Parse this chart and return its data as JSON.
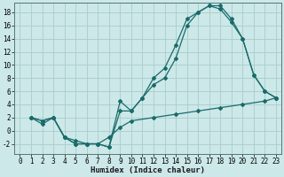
{
  "title": "",
  "xlabel": "Humidex (Indice chaleur)",
  "background_color": "#cce8e8",
  "grid_color": "#aacccc",
  "line_color": "#1a6b6b",
  "xlim": [
    -0.5,
    23.5
  ],
  "ylim": [
    -3.5,
    19.5
  ],
  "xticks": [
    0,
    1,
    2,
    3,
    4,
    5,
    6,
    7,
    8,
    9,
    10,
    11,
    12,
    13,
    14,
    15,
    16,
    17,
    18,
    19,
    20,
    21,
    22,
    23
  ],
  "yticks": [
    -2,
    0,
    2,
    4,
    6,
    8,
    10,
    12,
    14,
    16,
    18
  ],
  "curve1_x": [
    1,
    2,
    3,
    4,
    5,
    6,
    7,
    8,
    9,
    10,
    11,
    12,
    13,
    14,
    15,
    16,
    17,
    18,
    19,
    20,
    21,
    22,
    23
  ],
  "curve1_y": [
    2,
    1,
    2,
    -1,
    -2,
    -2,
    -2,
    -2.5,
    4.5,
    3,
    5,
    8,
    9.5,
    13,
    17,
    18,
    19,
    19,
    17,
    14,
    8.5,
    6,
    5
  ],
  "curve2_x": [
    1,
    2,
    3,
    4,
    5,
    6,
    7,
    8,
    9,
    10,
    11,
    12,
    13,
    14,
    15,
    16,
    17,
    18,
    19,
    20,
    21,
    22,
    23
  ],
  "curve2_y": [
    2,
    1.5,
    2,
    -1,
    -2,
    -2,
    -2,
    -2.5,
    3,
    3,
    5,
    7,
    8,
    11,
    16,
    18,
    19,
    18.5,
    16.5,
    14,
    8.5,
    6,
    5
  ],
  "curve3_x": [
    1,
    2,
    3,
    4,
    5,
    6,
    7,
    8,
    9,
    10,
    12,
    14,
    16,
    18,
    20,
    22,
    23
  ],
  "curve3_y": [
    2,
    1.5,
    2,
    -1,
    -1.5,
    -2,
    -2,
    -1,
    0.5,
    1.5,
    2,
    2.5,
    3,
    3.5,
    4,
    4.5,
    5
  ],
  "tick_fontsize": 5.5,
  "xlabel_fontsize": 6.5
}
